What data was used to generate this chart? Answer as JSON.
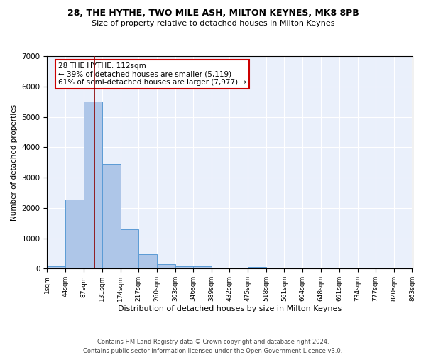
{
  "title1": "28, THE HYTHE, TWO MILE ASH, MILTON KEYNES, MK8 8PB",
  "title2": "Size of property relative to detached houses in Milton Keynes",
  "xlabel": "Distribution of detached houses by size in Milton Keynes",
  "ylabel": "Number of detached properties",
  "footnote1": "Contains HM Land Registry data © Crown copyright and database right 2024.",
  "footnote2": "Contains public sector information licensed under the Open Government Licence v3.0.",
  "annotation_line1": "28 THE HYTHE: 112sqm",
  "annotation_line2": "← 39% of detached houses are smaller (5,119)",
  "annotation_line3": "61% of semi-detached houses are larger (7,977) →",
  "bar_color": "#aec6e8",
  "bar_edge_color": "#5b9bd5",
  "vline_color": "#8b0000",
  "vline_x": 112,
  "bin_edges": [
    1,
    44,
    87,
    131,
    174,
    217,
    260,
    303,
    346,
    389,
    432,
    475,
    518,
    561,
    604,
    648,
    691,
    734,
    777,
    820,
    863
  ],
  "bar_heights": [
    70,
    2270,
    5500,
    3440,
    1300,
    470,
    155,
    80,
    70,
    0,
    0,
    65,
    0,
    0,
    0,
    0,
    0,
    0,
    0,
    0
  ],
  "ylim": [
    0,
    7000
  ],
  "yticks": [
    0,
    1000,
    2000,
    3000,
    4000,
    5000,
    6000,
    7000
  ],
  "bg_color": "#eaf0fb",
  "grid_color": "#ffffff",
  "annotation_box_color": "#ffffff",
  "annotation_box_edge_color": "#cc0000",
  "title1_fontsize": 9,
  "title2_fontsize": 8,
  "xlabel_fontsize": 8,
  "ylabel_fontsize": 7.5,
  "footnote_fontsize": 6,
  "annotation_fontsize": 7.5
}
